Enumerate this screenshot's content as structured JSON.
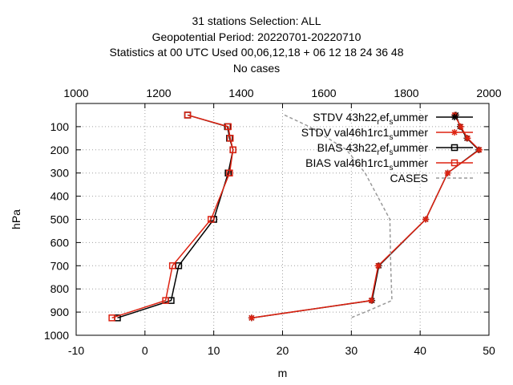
{
  "chart_data": {
    "type": "line",
    "title_lines": [
      "31 stations Selection: ALL",
      "Geopotential  Period: 20220701-20220710",
      "Statistics at 00 UTC  Used  00,06,12,18  + 06 12 18 24 36 48",
      "No cases"
    ],
    "xlabel": "m",
    "ylabel": "hPa",
    "xlim": [
      -10,
      50
    ],
    "ylim": [
      1000,
      0
    ],
    "x2lim": [
      1000,
      2000
    ],
    "xticks": [
      -10,
      0,
      10,
      20,
      30,
      40,
      50
    ],
    "x2ticks": [
      1000,
      1200,
      1400,
      1600,
      1800,
      2000
    ],
    "yticks": [
      100,
      200,
      300,
      400,
      500,
      600,
      700,
      800,
      900,
      1000
    ],
    "grid": true,
    "legend_position": "top-right",
    "legend": [
      {
        "label_pre": "STDV 43h22",
        "sub1": "r",
        "mid": "ef",
        "sub2": "s",
        "post": "ummer"
      },
      {
        "label_pre": "STDV val46h1rc1",
        "sub1": "",
        "mid": "",
        "sub2": "s",
        "post": "ummer"
      },
      {
        "label_pre": "BIAS 43h22",
        "sub1": "r",
        "mid": "ef",
        "sub2": "s",
        "post": "ummer"
      },
      {
        "label_pre": "BIAS val46h1rc1",
        "sub1": "",
        "mid": "",
        "sub2": "s",
        "post": "ummer"
      },
      {
        "label_pre": "CASES",
        "sub1": "",
        "mid": "",
        "sub2": "",
        "post": ""
      }
    ],
    "series": [
      {
        "name": "STDV 43h22_ref_summer",
        "color": "#000000",
        "marker": "star",
        "points": [
          [
            45.2,
            50
          ],
          [
            45.8,
            100
          ],
          [
            46.8,
            150
          ],
          [
            48.5,
            200
          ],
          [
            44.0,
            300
          ],
          [
            40.8,
            500
          ],
          [
            34.0,
            700
          ],
          [
            33.0,
            850
          ],
          [
            15.5,
            925
          ]
        ]
      },
      {
        "name": "STDV val46h1rc1_summer",
        "color": "#dd2211",
        "marker": "star",
        "points": [
          [
            45.0,
            50
          ],
          [
            45.9,
            100
          ],
          [
            46.9,
            150
          ],
          [
            48.6,
            200
          ],
          [
            44.0,
            300
          ],
          [
            40.8,
            500
          ],
          [
            33.9,
            700
          ],
          [
            32.9,
            850
          ],
          [
            15.5,
            925
          ]
        ]
      },
      {
        "name": "BIAS 43h22_ref_summer",
        "color": "#000000",
        "marker": "square",
        "points": [
          [
            6.2,
            50
          ],
          [
            12.0,
            100
          ],
          [
            12.3,
            150
          ],
          [
            12.8,
            200
          ],
          [
            12.1,
            300
          ],
          [
            10.0,
            500
          ],
          [
            4.9,
            700
          ],
          [
            3.8,
            850
          ],
          [
            -4.0,
            925
          ]
        ]
      },
      {
        "name": "BIAS val46h1rc1_summer",
        "color": "#dd2211",
        "marker": "square",
        "points": [
          [
            6.2,
            50
          ],
          [
            12.1,
            100
          ],
          [
            12.4,
            150
          ],
          [
            12.8,
            200
          ],
          [
            12.3,
            300
          ],
          [
            9.6,
            500
          ],
          [
            4.0,
            700
          ],
          [
            3.0,
            850
          ],
          [
            -4.8,
            925
          ]
        ]
      },
      {
        "name": "CASES",
        "color": "#999999",
        "marker": "none",
        "dashed": true,
        "axis": "x2",
        "points": [
          [
            1505,
            50
          ],
          [
            1565,
            100
          ],
          [
            1610,
            150
          ],
          [
            1655,
            200
          ],
          [
            1700,
            300
          ],
          [
            1760,
            500
          ],
          [
            1762,
            700
          ],
          [
            1765,
            850
          ],
          [
            1700,
            900
          ],
          [
            1665,
            925
          ]
        ]
      }
    ]
  }
}
